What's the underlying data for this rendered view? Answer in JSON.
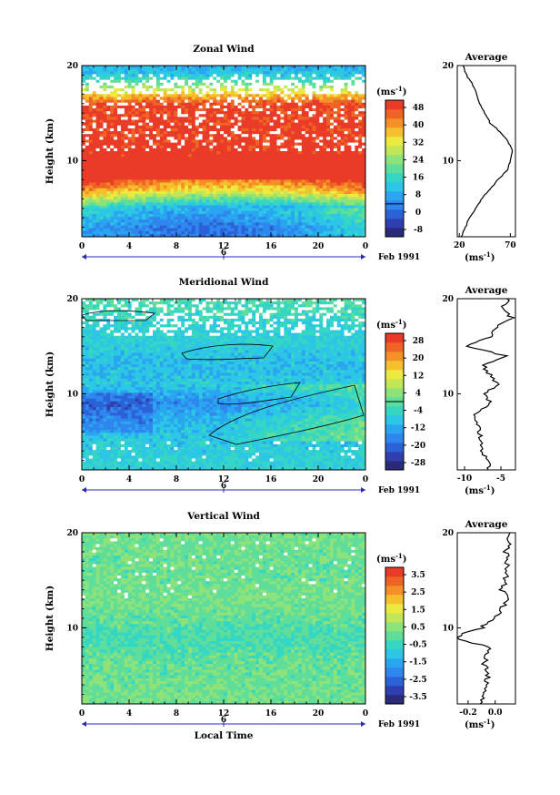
{
  "colors": {
    "scale": [
      "#2a2a78",
      "#2f3fb0",
      "#2b62d6",
      "#2e86ee",
      "#2aa6f0",
      "#2cc6e6",
      "#34d6c4",
      "#5ede9a",
      "#8ee27a",
      "#c2e656",
      "#ecea3e",
      "#f6c02c",
      "#f49026",
      "#ee6424",
      "#ea3a28"
    ],
    "missing": "#ffffff",
    "contour": "#000000"
  },
  "panels": [
    {
      "id": "zonal",
      "title": "Zonal Wind",
      "ylabel": "Height (km)",
      "xticks": [
        "0",
        "4",
        "8",
        "12",
        "16",
        "20",
        "0"
      ],
      "yticks": [
        "20",
        "10"
      ],
      "date_marker": "6",
      "date_label": "Feb 1991",
      "colorbar_unit": "(ms",
      "colorbar_ticks": [
        "48",
        "40",
        "32",
        "24",
        "16",
        "8",
        "0",
        "-8"
      ],
      "average": {
        "title": "Average",
        "xticks": [
          "20",
          "70"
        ],
        "yticks": [
          "20",
          "10"
        ],
        "unit": "(ms"
      }
    },
    {
      "id": "meridional",
      "title": "Meridional Wind",
      "ylabel": "Height (km)",
      "xticks": [
        "0",
        "4",
        "8",
        "12",
        "16",
        "20",
        "0"
      ],
      "yticks": [
        "20",
        "10"
      ],
      "date_marker": "6",
      "date_label": "Feb 1991",
      "colorbar_unit": "(ms",
      "colorbar_ticks": [
        "28",
        "20",
        "12",
        "4",
        "-4",
        "-12",
        "-20",
        "-28"
      ],
      "average": {
        "title": "Average",
        "xticks": [
          "-10",
          "-5"
        ],
        "yticks": [
          "20",
          "10"
        ],
        "unit": "(ms"
      }
    },
    {
      "id": "vertical",
      "title": "Vertical Wind",
      "ylabel": "Height (km)",
      "xticks": [
        "0",
        "4",
        "8",
        "12",
        "16",
        "20",
        "0"
      ],
      "yticks": [
        "20",
        "10"
      ],
      "date_marker": "6",
      "date_label": "Feb 1991",
      "xlabel": "Local Time",
      "colorbar_unit": "(ms",
      "colorbar_ticks": [
        "3.5",
        "2.5",
        "1.5",
        "0.5",
        "-0.5",
        "-1.5",
        "-2.5",
        "-3.5"
      ],
      "average": {
        "title": "Average",
        "xticks": [
          "-0.2",
          "0.0"
        ],
        "yticks": [
          "20",
          "10"
        ],
        "unit": "(ms"
      }
    }
  ],
  "unit_exponent": "-1",
  "unit_close": ")",
  "chart_data": [
    {
      "type": "heatmap",
      "title": "Zonal Wind",
      "ylabel": "Height (km)",
      "xrange": [
        0,
        24
      ],
      "yrange": [
        2,
        20
      ],
      "value_range": [
        -12,
        52
      ],
      "profile": [
        [
          3,
          8
        ],
        [
          5,
          16
        ],
        [
          6,
          30
        ],
        [
          7,
          44
        ],
        [
          8,
          52
        ],
        [
          10,
          52
        ],
        [
          12,
          50
        ],
        [
          14,
          50
        ],
        [
          16,
          48
        ],
        [
          17,
          36
        ],
        [
          18,
          22
        ],
        [
          19,
          12
        ],
        [
          20,
          8
        ]
      ],
      "average_profile": {
        "x": [
          22,
          30,
          42,
          58,
          67,
          70,
          72,
          68,
          60,
          50,
          40,
          33,
          27,
          24
        ],
        "y": [
          2,
          4,
          6,
          8,
          9,
          10,
          11,
          12,
          13,
          14,
          16,
          18,
          19,
          20
        ],
        "xlim": [
          18,
          75
        ]
      }
    },
    {
      "type": "heatmap",
      "title": "Meridional Wind",
      "ylabel": "Height (km)",
      "xrange": [
        0,
        24
      ],
      "yrange": [
        2,
        20
      ],
      "value_range": [
        -32,
        32
      ],
      "profile": [
        [
          3,
          -6
        ],
        [
          5,
          -8
        ],
        [
          7,
          -10
        ],
        [
          9,
          -16
        ],
        [
          11,
          -8
        ],
        [
          13,
          -10
        ],
        [
          15,
          -7
        ],
        [
          17,
          -6
        ],
        [
          19,
          -3
        ],
        [
          20,
          -2
        ]
      ],
      "average_profile": {
        "x": [
          -6.5,
          -7.5,
          -8.0,
          -8.5,
          -6.5,
          -7.0,
          -5.5,
          -6.5,
          -7.5,
          -4.5,
          -9.5,
          -6.5,
          -5.5,
          -3.5,
          -5.0,
          -4.0
        ],
        "y": [
          2,
          4,
          6,
          8,
          9,
          10,
          11,
          12,
          13,
          14,
          15,
          16,
          17,
          18,
          19,
          20
        ],
        "xlim": [
          -11,
          -3
        ]
      }
    },
    {
      "type": "heatmap",
      "title": "Vertical Wind",
      "ylabel": "Height (km)",
      "xlabel": "Local Time",
      "xrange": [
        0,
        24
      ],
      "yrange": [
        2,
        20
      ],
      "value_range": [
        -4,
        4
      ],
      "profile": [
        [
          3,
          0.2
        ],
        [
          6,
          0.1
        ],
        [
          9,
          -0.3
        ],
        [
          11,
          0.0
        ],
        [
          13,
          0.3
        ],
        [
          16,
          0.1
        ],
        [
          19,
          0.2
        ]
      ],
      "average_profile": {
        "x": [
          -0.1,
          -0.05,
          -0.08,
          -0.05,
          -0.3,
          -0.1,
          0.0,
          0.05,
          0.1,
          0.05,
          0.1,
          0.08,
          0.12
        ],
        "y": [
          2,
          4,
          6,
          8,
          9,
          10,
          11,
          12,
          13,
          14,
          16,
          18,
          20
        ],
        "xlim": [
          -0.28,
          0.15
        ]
      }
    }
  ]
}
